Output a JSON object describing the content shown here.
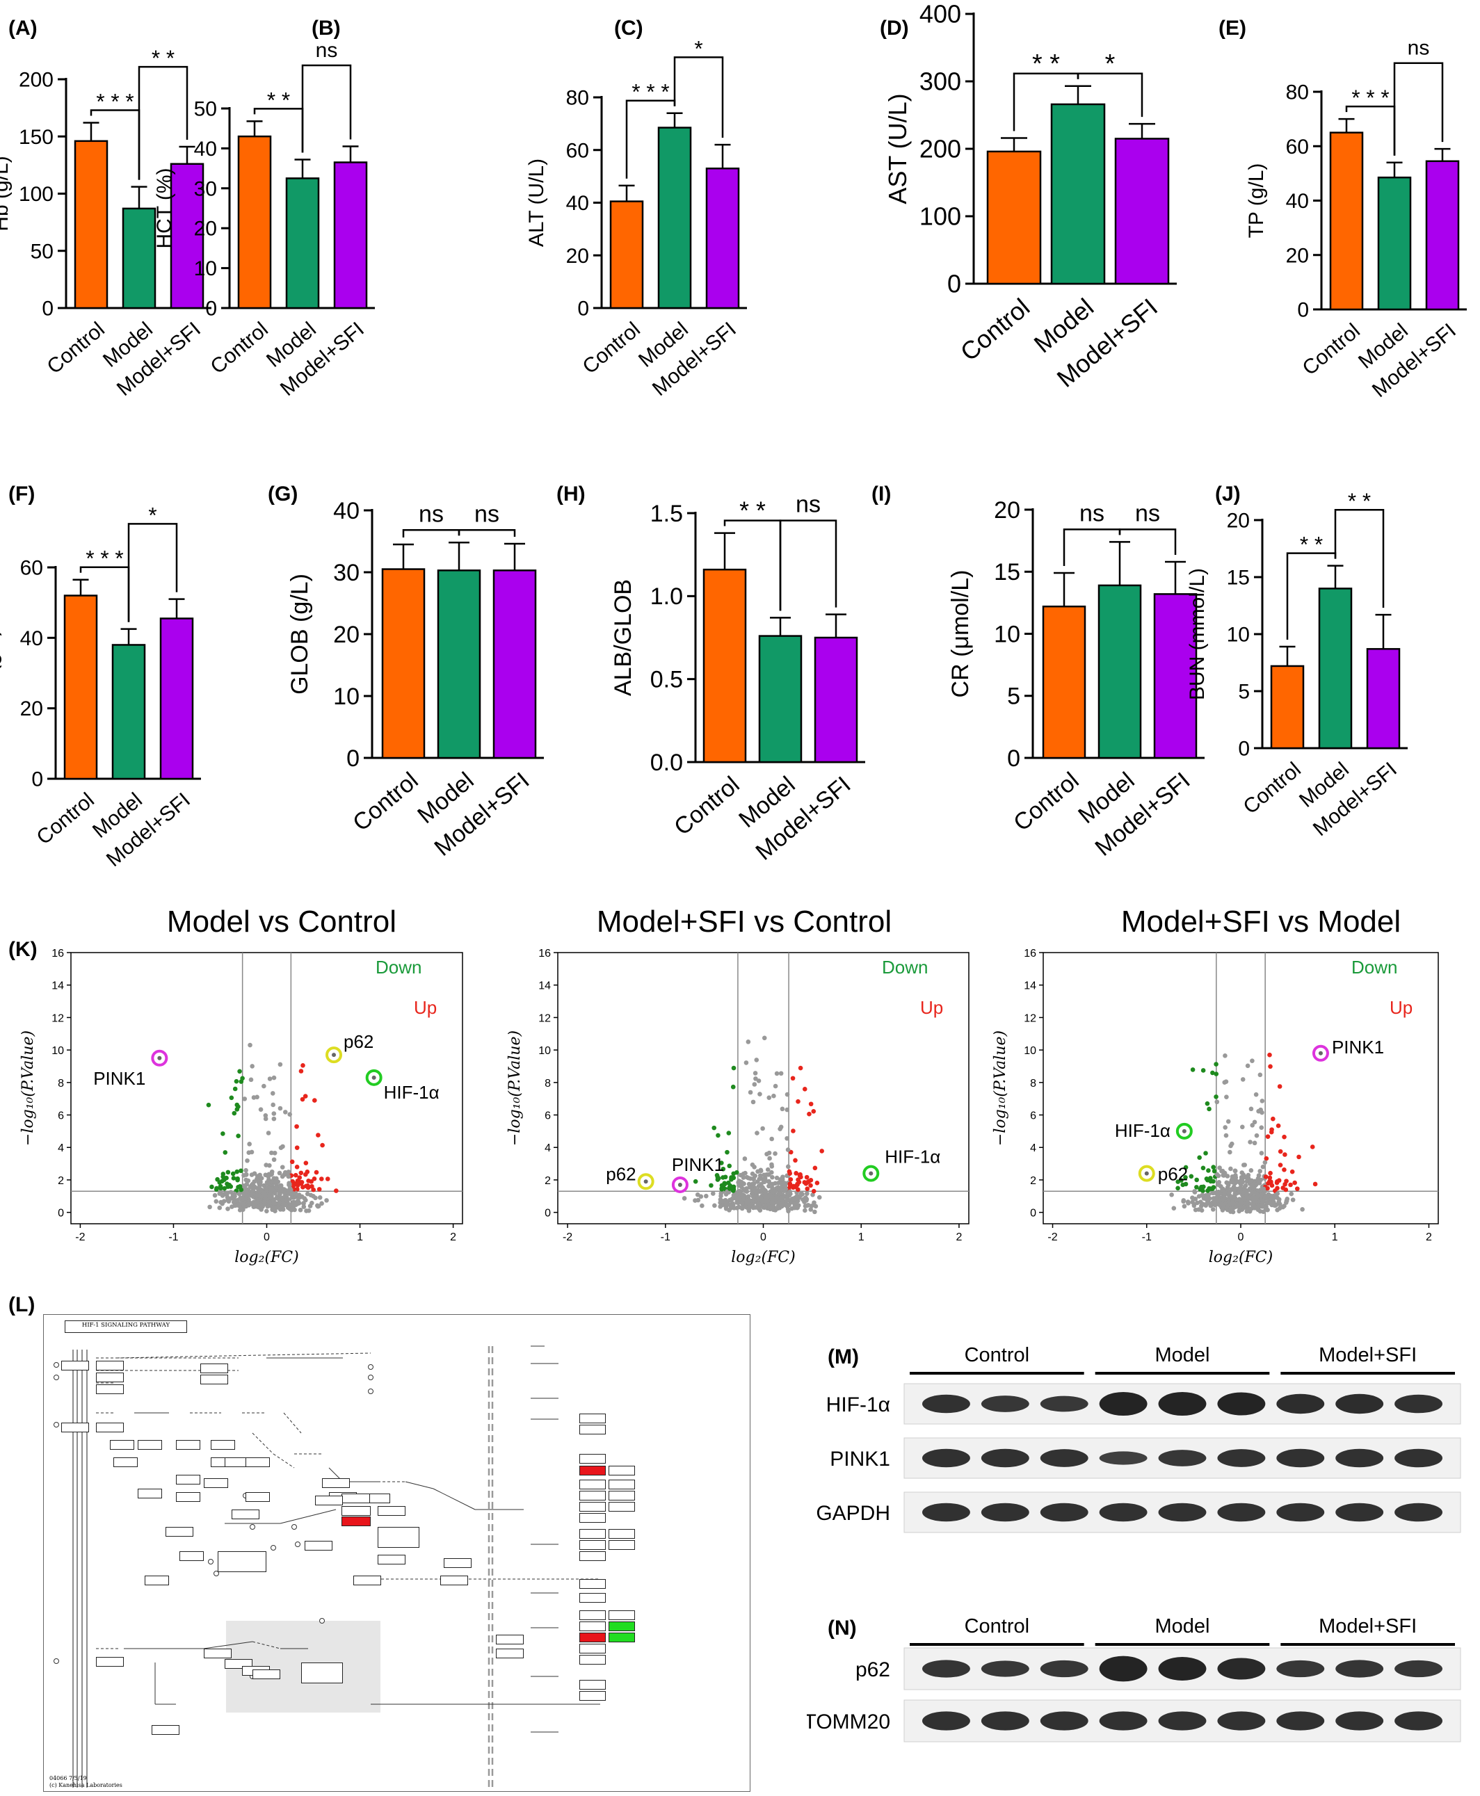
{
  "bar_panels": [
    {
      "label": "(A)",
      "ylabel": "Hb (g/L)",
      "ymax": 200,
      "ticks": [
        0,
        50,
        100,
        150,
        200
      ],
      "values": [
        146,
        87,
        126
      ],
      "errors": [
        16,
        19,
        15
      ]
    },
    {
      "label": "(B)",
      "ylabel": "HCT (%)",
      "ymax": 50,
      "ticks": [
        0,
        10,
        20,
        30,
        40,
        50
      ],
      "values": [
        43,
        32.5,
        36.5
      ],
      "errors": [
        3.8,
        4.7,
        4.0
      ]
    },
    {
      "label": "(C)",
      "ylabel": "ALT (U/L)",
      "ymax": 80,
      "ticks": [
        0,
        20,
        40,
        60,
        80
      ],
      "values": [
        40.5,
        68.5,
        53
      ],
      "errors": [
        6,
        5.5,
        9
      ]
    },
    {
      "label": "(D)",
      "ylabel": "AST (U/L)",
      "ymax": 400,
      "ticks": [
        0,
        100,
        200,
        300,
        400
      ],
      "values": [
        196,
        266,
        215
      ],
      "errors": [
        20,
        27,
        22
      ]
    },
    {
      "label": "(E)",
      "ylabel": "TP (g/L)",
      "ymax": 80,
      "ticks": [
        0,
        20,
        40,
        60,
        80
      ],
      "values": [
        65,
        48.5,
        54.5
      ],
      "errors": [
        5,
        5.5,
        4.5
      ]
    },
    {
      "label": "(F)",
      "ylabel": "ALB (g/L)",
      "ymax": 60,
      "ticks": [
        0,
        20,
        40,
        60
      ],
      "values": [
        52,
        38,
        45.5
      ],
      "errors": [
        4.5,
        4.5,
        5.5
      ]
    },
    {
      "label": "(G)",
      "ylabel": "GLOB (g/L)",
      "ymax": 40,
      "ticks": [
        0,
        10,
        20,
        30,
        40
      ],
      "values": [
        30.5,
        30.3,
        30.3
      ],
      "errors": [
        4,
        4.5,
        4.3
      ]
    },
    {
      "label": "(H)",
      "ylabel": "ALB/GLOB",
      "ymax": 1.5,
      "ticks": [
        "0.0",
        "0.5",
        "1.0",
        "1.5"
      ],
      "values": [
        1.16,
        0.76,
        0.75
      ],
      "errors": [
        0.22,
        0.11,
        0.14
      ]
    },
    {
      "label": "(I)",
      "ylabel": "CR (μmol/L)",
      "ymax": 20,
      "ticks": [
        0,
        5,
        10,
        15,
        20
      ],
      "values": [
        12.2,
        13.9,
        13.2
      ],
      "errors": [
        2.7,
        3.5,
        2.6
      ]
    },
    {
      "label": "(J)",
      "ylabel": "BUN (mmol/L)",
      "ymax": 20,
      "ticks": [
        0,
        5,
        10,
        15,
        20
      ],
      "values": [
        7.2,
        14,
        8.7
      ],
      "errors": [
        1.7,
        2,
        3
      ]
    }
  ],
  "group_labels": [
    "Control",
    "Model",
    "Model+SFI"
  ],
  "significance": {
    "A": [
      "* * *",
      "* *"
    ],
    "B": [
      "* *",
      "ns"
    ],
    "C": [
      "* * *",
      "*"
    ],
    "D": [
      "* *",
      "*"
    ],
    "E": [
      "* * *",
      "ns"
    ],
    "F": [
      "* * *",
      "*"
    ],
    "G": [
      "ns",
      "ns"
    ],
    "H": [
      "* *",
      "ns"
    ],
    "I": [
      "ns",
      "ns"
    ],
    "J": [
      "* *",
      "* *"
    ]
  },
  "bar_colors": [
    "#ff6600",
    "#119966",
    "#aa00ee"
  ],
  "volcano": {
    "panel_label": "(K)",
    "titles": [
      "Model vs Control",
      "Model+SFI vs Control",
      "Model+SFI vs Model"
    ],
    "xlabel": "log₂(FC)",
    "ylabel": "−log₁₀(P.Value)",
    "xticks": [
      -2,
      -1,
      0,
      1,
      2
    ],
    "yticks": [
      0,
      2,
      4,
      6,
      8,
      10,
      12,
      14,
      16
    ],
    "legend_down": "Down",
    "legend_up": "Up",
    "annotations": [
      [
        {
          "name": "PINK1",
          "x": -1.15,
          "y": 9.5,
          "color": "#dd33dd"
        },
        {
          "name": "p62",
          "x": 0.72,
          "y": 9.7,
          "color": "#dddd22"
        },
        {
          "name": "HIF-1α",
          "x": 1.15,
          "y": 8.3,
          "color": "#22cc22"
        }
      ],
      [
        {
          "name": "p62",
          "x": -1.2,
          "y": 1.9,
          "color": "#dddd22"
        },
        {
          "name": "PINK1",
          "x": -0.85,
          "y": 1.7,
          "color": "#dd33dd"
        },
        {
          "name": "HIF-1α",
          "x": 1.1,
          "y": 2.4,
          "color": "#22cc22"
        }
      ],
      [
        {
          "name": "PINK1",
          "x": 0.85,
          "y": 9.8,
          "color": "#dd33dd"
        },
        {
          "name": "HIF-1α",
          "x": -0.6,
          "y": 5.0,
          "color": "#22cc22"
        },
        {
          "name": "p62",
          "x": -1.0,
          "y": 2.4,
          "color": "#dddd22"
        }
      ]
    ]
  },
  "kegg": {
    "panel_label": "(L)",
    "title": "HIF-1 SIGNALING PATHWAY",
    "footer1": "04066 7/5/19",
    "footer2": "(c) Kanehisa Laboratories"
  },
  "western_m": {
    "panel_label": "(M)",
    "groups": [
      "Control",
      "Model",
      "Model+SFI"
    ],
    "rows": [
      "HIF-1α",
      "PINK1",
      "GAPDH"
    ]
  },
  "western_n": {
    "panel_label": "(N)",
    "groups": [
      "Control",
      "Model",
      "Model+SFI"
    ],
    "rows": [
      "p62",
      "TOMM20"
    ]
  }
}
